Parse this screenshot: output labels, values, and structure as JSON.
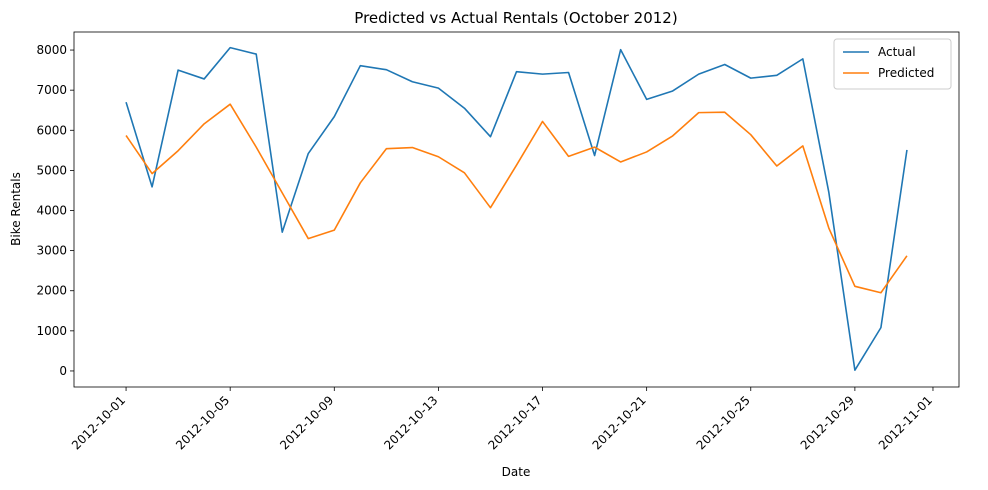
{
  "chart_data": {
    "type": "line",
    "title": "Predicted vs Actual Rentals (October 2012)",
    "xlabel": "Date",
    "ylabel": "Bike Rentals",
    "x": [
      "2012-10-01",
      "2012-10-02",
      "2012-10-03",
      "2012-10-04",
      "2012-10-05",
      "2012-10-06",
      "2012-10-07",
      "2012-10-08",
      "2012-10-09",
      "2012-10-10",
      "2012-10-11",
      "2012-10-12",
      "2012-10-13",
      "2012-10-14",
      "2012-10-15",
      "2012-10-16",
      "2012-10-17",
      "2012-10-18",
      "2012-10-19",
      "2012-10-20",
      "2012-10-21",
      "2012-10-22",
      "2012-10-23",
      "2012-10-24",
      "2012-10-25",
      "2012-10-26",
      "2012-10-27",
      "2012-10-28",
      "2012-10-29",
      "2012-10-30",
      "2012-10-31"
    ],
    "series": [
      {
        "name": "Actual",
        "color": "#1f77b4",
        "values": [
          6700,
          4590,
          7500,
          7280,
          8060,
          7900,
          3460,
          5420,
          6340,
          7610,
          7510,
          7210,
          7050,
          6550,
          5840,
          7460,
          7400,
          7440,
          5370,
          8010,
          6770,
          6980,
          7400,
          7640,
          7300,
          7370,
          7780,
          4450,
          20,
          1080,
          5510
        ]
      },
      {
        "name": "Predicted",
        "color": "#ff7f0e",
        "values": [
          5870,
          4920,
          5490,
          6160,
          6650,
          5580,
          4440,
          3300,
          3510,
          4690,
          5540,
          5570,
          5340,
          4940,
          4070,
          5130,
          6220,
          5350,
          5580,
          5210,
          5460,
          5860,
          6440,
          6450,
          5890,
          5110,
          5610,
          3560,
          2110,
          1950,
          2870
        ]
      }
    ],
    "xticks": [
      "2012-10-01",
      "2012-10-05",
      "2012-10-09",
      "2012-10-13",
      "2012-10-17",
      "2012-10-21",
      "2012-10-25",
      "2012-10-29",
      "2012-11-01"
    ],
    "yticks": [
      0,
      1000,
      2000,
      3000,
      4000,
      5000,
      6000,
      7000,
      8000
    ],
    "xlim": [
      "2012-09-29",
      "2012-11-02"
    ],
    "ylim": [
      -400,
      8450
    ],
    "legend": "top-right",
    "grid": false
  }
}
